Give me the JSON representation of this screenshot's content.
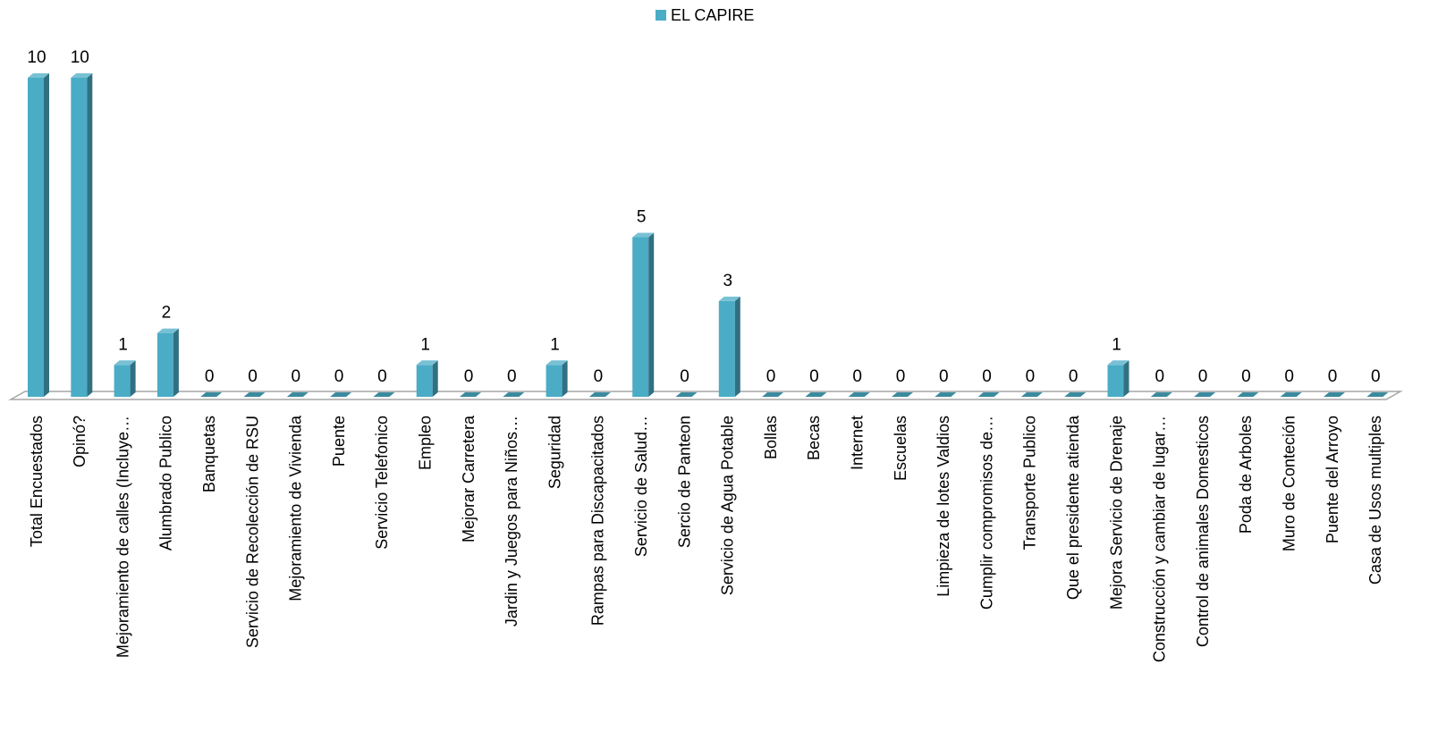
{
  "chart_data": {
    "type": "bar3d",
    "categories": [
      "Total Encuestados",
      "Opinó?",
      "Mejoramiento de calles (Incluye…",
      "Alumbrado Publico",
      "Banquetas",
      "Servicio de Recolección de RSU",
      "Mejoramiento de Vivienda",
      "Puente",
      "Servicio Telefonico",
      "Empleo",
      "Mejorar Carretera",
      "Jardin y Juegos para Niños…",
      "Seguridad",
      "Rampas para Discapacitados",
      "Servicio de Salud…",
      "Sercio de Panteon",
      "Servicio de Agua Potable",
      "Bollas",
      "Becas",
      "Internet",
      "Escuelas",
      "Limpieza de lotes Valdios",
      "Cumplir compromisos de…",
      "Transporte Publico",
      "Que el presidente atienda",
      "Mejora Servicio de Drenaje",
      "Construcción y cambiar de lugar…",
      "Control de animales Domesticos",
      "Poda de Arboles",
      "Muro de Conteción",
      "Puente del Arroyo",
      "Casa de Usos multiples"
    ],
    "series": [
      {
        "name": "EL  CAPIRE",
        "color": "#4bacc6",
        "values": [
          10,
          10,
          1,
          2,
          0,
          0,
          0,
          0,
          0,
          1,
          0,
          0,
          1,
          0,
          5,
          0,
          3,
          0,
          0,
          0,
          0,
          0,
          0,
          0,
          0,
          1,
          0,
          0,
          0,
          0,
          0,
          0
        ]
      }
    ],
    "legend": "top",
    "data_labels": true
  }
}
